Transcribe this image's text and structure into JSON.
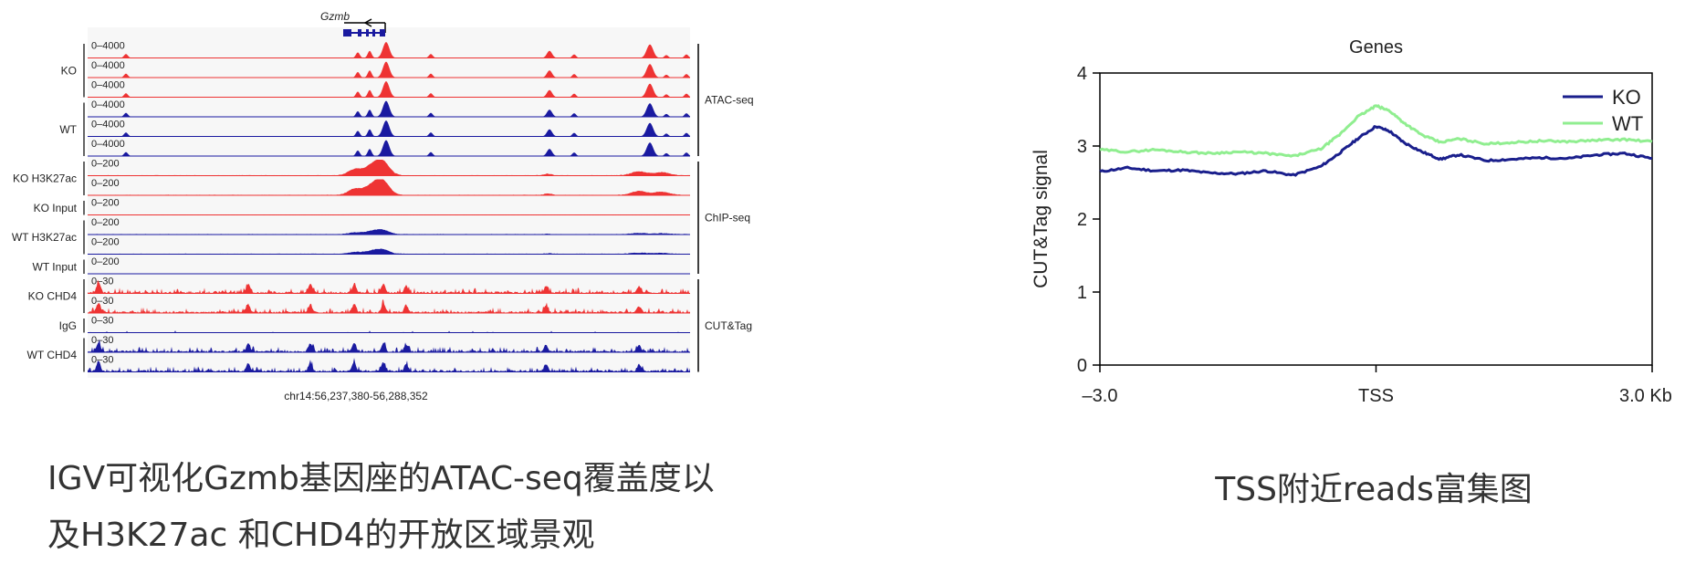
{
  "igv": {
    "gene": "Gzmb",
    "locus": "chr14:56,237,380-56,288,352",
    "colors": {
      "ko": "#ee3333",
      "wt": "#1a1aa0"
    },
    "tracks": [
      {
        "group": "KO",
        "range": "0–4000",
        "type": "atac",
        "color": "ko"
      },
      {
        "group": "KO",
        "range": "0–4000",
        "type": "atac",
        "color": "ko"
      },
      {
        "group": "KO",
        "range": "0–4000",
        "type": "atac",
        "color": "ko"
      },
      {
        "group": "WT",
        "range": "0–4000",
        "type": "atac",
        "color": "wt"
      },
      {
        "group": "WT",
        "range": "0–4000",
        "type": "atac",
        "color": "wt"
      },
      {
        "group": "WT",
        "range": "0–4000",
        "type": "atac",
        "color": "wt"
      },
      {
        "group": "KO H3K27ac",
        "range": "0–200",
        "type": "h3k27ac",
        "color": "ko"
      },
      {
        "group": "KO H3K27ac",
        "range": "0–200",
        "type": "h3k27ac",
        "color": "ko"
      },
      {
        "group": "KO Input",
        "range": "0–200",
        "type": "input",
        "color": "ko"
      },
      {
        "group": "WT H3K27ac",
        "range": "0–200",
        "type": "h3k27ac_wt",
        "color": "wt"
      },
      {
        "group": "WT H3K27ac",
        "range": "0–200",
        "type": "h3k27ac_wt",
        "color": "wt"
      },
      {
        "group": "WT Input",
        "range": "0–200",
        "type": "input",
        "color": "wt"
      },
      {
        "group": "KO CHD4",
        "range": "0–30",
        "type": "chd4",
        "color": "ko"
      },
      {
        "group": "KO CHD4",
        "range": "0–30",
        "type": "chd4",
        "color": "ko"
      },
      {
        "group": "IgG",
        "range": "0–30",
        "type": "igg",
        "color": "wt"
      },
      {
        "group": "WT CHD4",
        "range": "0–30",
        "type": "chd4",
        "color": "wt"
      },
      {
        "group": "WT CHD4",
        "range": "0–30",
        "type": "chd4",
        "color": "wt"
      }
    ],
    "row_labels": [
      "KO",
      "WT",
      "KO H3K27ac",
      "KO Input",
      "WT H3K27ac",
      "WT Input",
      "KO CHD4",
      "IgG",
      "WT CHD4"
    ],
    "assays": [
      "ATAC-seq",
      "ChIP-seq",
      "CUT&Tag"
    ]
  },
  "chart_data": {
    "type": "line",
    "title": "Genes",
    "xlabel": "",
    "ylabel": "CUT&Tag signal",
    "xlim": [
      -3.0,
      3.0
    ],
    "ylim": [
      0,
      4
    ],
    "xtick_labels": [
      "–3.0",
      "TSS",
      "3.0 Kb"
    ],
    "ytick_labels": [
      "0",
      "1",
      "2",
      "3",
      "4"
    ],
    "legend_position": "top-right",
    "grid": false,
    "x": [
      -3.0,
      -2.7,
      -2.4,
      -2.1,
      -1.8,
      -1.5,
      -1.2,
      -0.9,
      -0.6,
      -0.4,
      -0.2,
      0.0,
      0.15,
      0.3,
      0.5,
      0.7,
      0.9,
      1.2,
      1.5,
      1.8,
      2.1,
      2.4,
      2.7,
      3.0
    ],
    "series": [
      {
        "name": "KO",
        "color": "#1a1f8c",
        "values": [
          2.65,
          2.7,
          2.66,
          2.67,
          2.63,
          2.62,
          2.66,
          2.6,
          2.72,
          2.9,
          3.1,
          3.27,
          3.2,
          3.05,
          2.92,
          2.82,
          2.88,
          2.8,
          2.82,
          2.84,
          2.83,
          2.88,
          2.9,
          2.83
        ]
      },
      {
        "name": "WT",
        "color": "#90ee90",
        "values": [
          2.95,
          2.92,
          2.95,
          2.92,
          2.9,
          2.92,
          2.9,
          2.86,
          2.96,
          3.15,
          3.4,
          3.55,
          3.48,
          3.32,
          3.15,
          3.05,
          3.1,
          3.03,
          3.05,
          3.07,
          3.06,
          3.08,
          3.09,
          3.06
        ]
      }
    ]
  },
  "captions": {
    "left_line1": "IGV可视化Gzmb基因座的ATAC-seq覆盖度以",
    "left_line2": "及H3K27ac 和CHD4的开放区域景观",
    "right": "TSS附近reads富集图"
  }
}
